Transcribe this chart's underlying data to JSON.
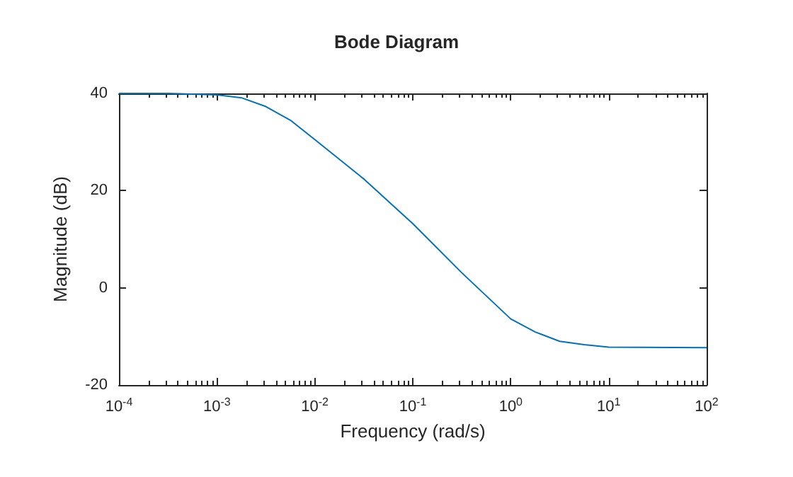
{
  "chart_data": {
    "type": "line",
    "title": "Bode Diagram",
    "xlabel": "Frequency (rad/s)",
    "ylabel": "Magnitude (dB)",
    "log": "x",
    "grid": false,
    "marker": "none",
    "line_style": "solid",
    "x": [
      0.0001,
      0.000316,
      0.001,
      0.00178,
      0.00316,
      0.00562,
      0.01,
      0.0316,
      0.1,
      0.316,
      1,
      1.78,
      3.16,
      5.62,
      10,
      100
    ],
    "series": [
      {
        "color": "#0072bd",
        "values": [
          40,
          40,
          39.7,
          39.1,
          37.3,
          34.5,
          30.5,
          22.4,
          13.2,
          3.1,
          -6.4,
          -9.1,
          -11,
          -11.7,
          -12.2,
          -12.3
        ]
      }
    ],
    "xlim": [
      0.0001,
      100
    ],
    "xticks": [
      {
        "value": 0.0001,
        "label": "10$^{-4}$"
      },
      {
        "value": 0.001,
        "label": "10$^{-3}$"
      },
      {
        "value": 0.01,
        "label": "10$^{-2}$"
      },
      {
        "value": 0.1,
        "label": "10$^{-1}$"
      },
      {
        "value": 1,
        "label": "10$^{0}$"
      },
      {
        "value": 10,
        "label": "10$^{1}$"
      },
      {
        "value": 100,
        "label": "10$^{2}$"
      }
    ],
    "ylim": [
      -20,
      40
    ],
    "yticks": [
      -20,
      0,
      20,
      40
    ]
  }
}
